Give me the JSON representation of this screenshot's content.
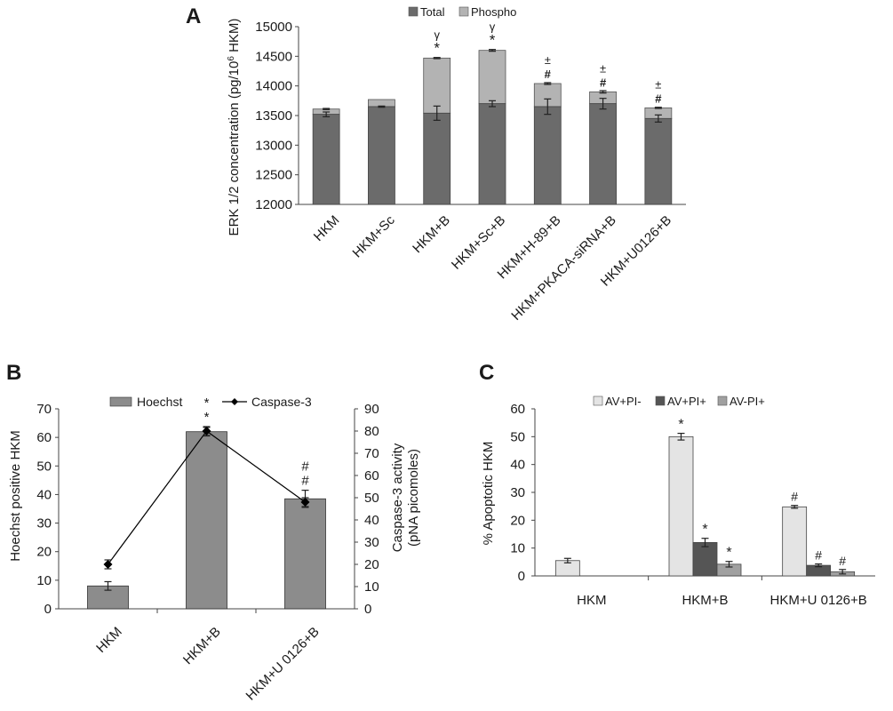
{
  "panels": {
    "A": {
      "letter": "A",
      "chart_type": "stacked-bar",
      "ylabel": "ERK 1/2 concentration (pg/10",
      "ylabel_sup": "6",
      "ylabel_tail": " HKM)",
      "ylim": [
        12000,
        15000
      ],
      "yticks": [
        "12000",
        "12500",
        "13000",
        "13500",
        "14000",
        "14500",
        "15000"
      ],
      "categories": [
        "HKM",
        "HKM+Sc",
        "HKM+B",
        "HKM+Sc+B",
        "HKM+H-89+B",
        "HKM+PKACA-siRNA+B",
        "HKM+U0126+B"
      ],
      "legend": [
        {
          "name": "Total",
          "color": "#6b6b6b"
        },
        {
          "name": "Phospho",
          "color": "#b3b3b3"
        }
      ],
      "total_values": [
        13520,
        13650,
        13540,
        13700,
        13650,
        13700,
        13450
      ],
      "total_err": [
        40,
        10,
        120,
        50,
        130,
        90,
        60
      ],
      "stack_top_values": [
        13610,
        13770,
        14470,
        14600,
        14040,
        13900,
        13630
      ],
      "stack_top_err": [
        10,
        0,
        10,
        15,
        15,
        20,
        10
      ],
      "annotations": [
        [],
        [],
        [
          "γ",
          "*"
        ],
        [
          "γ",
          "*"
        ],
        [
          "±",
          "#"
        ],
        [
          "±",
          "#"
        ],
        [
          "±",
          "#"
        ]
      ]
    },
    "B": {
      "letter": "B",
      "chart_type": "bar+line",
      "ylabel_left": "Hoechst positive HKM",
      "ylabel_right_1": "Caspase-3 activity",
      "ylabel_right_2": "(pNA picomoles)",
      "ylim_left": [
        0,
        70
      ],
      "ylim_right": [
        0,
        90
      ],
      "yticks_left": [
        "0",
        "10",
        "20",
        "30",
        "40",
        "50",
        "60",
        "70"
      ],
      "yticks_right": [
        "0",
        "10",
        "20",
        "30",
        "40",
        "50",
        "60",
        "70",
        "80",
        "90"
      ],
      "categories": [
        "HKM",
        "HKM+B",
        "HKM+U 0126+B"
      ],
      "legend": [
        {
          "name": "Hoechst",
          "color": "#8c8c8c"
        },
        {
          "name": "Caspase-3",
          "color": "#000000"
        }
      ],
      "hoechst_values": [
        8,
        62,
        38.5
      ],
      "hoechst_err": [
        1.5,
        1.5,
        3
      ],
      "caspase_values": [
        20,
        80,
        48
      ],
      "caspase_err": [
        2,
        2,
        2
      ],
      "annotations": [
        [],
        [
          "*",
          "*"
        ],
        [
          "#",
          "#"
        ]
      ]
    },
    "C": {
      "letter": "C",
      "chart_type": "grouped-bar",
      "ylabel": "% Apoptotic HKM",
      "ylim": [
        0,
        60
      ],
      "yticks": [
        "0",
        "10",
        "20",
        "30",
        "40",
        "50",
        "60"
      ],
      "categories": [
        "HKM",
        "HKM+B",
        "HKM+U 0126+B"
      ],
      "legend": [
        {
          "name": "AV+PI-",
          "color": "#e4e4e4"
        },
        {
          "name": "AV+PI+",
          "color": "#555555"
        },
        {
          "name": "AV-PI+",
          "color": "#a0a0a0"
        }
      ],
      "series": [
        {
          "name": "AV+PI-",
          "values": [
            5.5,
            50,
            24.8
          ],
          "err": [
            0.8,
            1.2,
            0.5
          ]
        },
        {
          "name": "AV+PI+",
          "values": [
            0,
            12,
            3.8
          ],
          "err": [
            0,
            1.5,
            0.5
          ]
        },
        {
          "name": "AV-PI+",
          "values": [
            0,
            4.2,
            1.5
          ],
          "err": [
            0,
            1,
            0.8
          ]
        }
      ],
      "annotations": [
        [
          [],
          [],
          []
        ],
        [
          [
            "*"
          ],
          [
            "*"
          ],
          [
            "*"
          ]
        ],
        [
          [
            "#"
          ],
          [
            "#"
          ],
          [
            "#"
          ]
        ]
      ]
    }
  }
}
